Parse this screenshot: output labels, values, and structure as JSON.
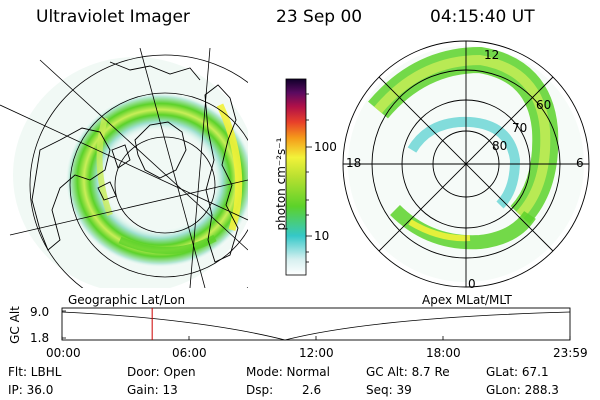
{
  "header": {
    "instrument": "Ultraviolet Imager",
    "date": "23 Sep 00",
    "time": "04:15:40 UT"
  },
  "colorbar": {
    "label": "photon cm⁻²s⁻¹",
    "ticks": [
      "100",
      "10"
    ]
  },
  "left_panel": {
    "caption": "Geographic Lat/Lon"
  },
  "right_panel": {
    "caption": "Apex MLat/MLT",
    "lat_labels": [
      "60",
      "70",
      "80"
    ],
    "mlt_labels": [
      "12",
      "18",
      "6",
      "0"
    ]
  },
  "gc_plot": {
    "ylabel": "GC Alt",
    "y_ticks": [
      "9.0",
      "1.8"
    ],
    "x_ticks": [
      "00:00",
      "06:00",
      "12:00",
      "18:00",
      "23:59"
    ],
    "marker_hours": 4.26,
    "colors": {
      "marker": "#cc0000"
    }
  },
  "info": {
    "flt": "Flt: LBHL",
    "ip": "IP: 36.0",
    "door": "Door: Open",
    "gain": "Gain: 13",
    "mode": "Mode: Normal",
    "dsp_label": "Dsp:",
    "dsp_value": "2.6",
    "gcalt": "GC Alt: 8.7 Re",
    "seq": "Seq: 39",
    "glat": "GLat: 67.1",
    "glon": "GLon: 288.3"
  },
  "colors": {
    "aurora_low": "#c6ecd0",
    "aurora_cyan": "#35c8c8",
    "aurora_green": "#5cd22a",
    "aurora_yellow": "#f2f23a",
    "aurora_orange": "#f59a1a",
    "colorbar_top": "#10002a"
  }
}
